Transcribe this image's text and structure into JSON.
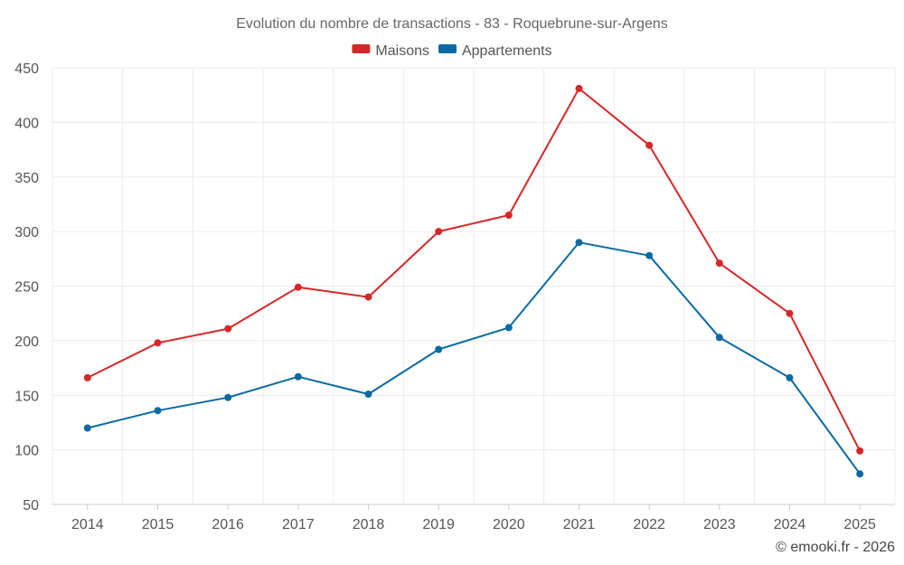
{
  "chart_data": {
    "type": "line",
    "title": "Evolution du nombre de transactions - 83 - Roquebrune-sur-Argens",
    "xlabel": "",
    "ylabel": "",
    "categories": [
      "2014",
      "2015",
      "2016",
      "2017",
      "2018",
      "2019",
      "2020",
      "2021",
      "2022",
      "2023",
      "2024",
      "2025"
    ],
    "ylim": [
      50,
      450
    ],
    "yticks": [
      50,
      100,
      150,
      200,
      250,
      300,
      350,
      400,
      450
    ],
    "grid": true,
    "legend_position": "top-center",
    "series": [
      {
        "name": "Maisons",
        "color": "#d62728",
        "values": [
          166,
          198,
          211,
          249,
          240,
          300,
          315,
          431,
          379,
          271,
          225,
          99
        ]
      },
      {
        "name": "Appartements",
        "color": "#0b6aa2",
        "values": [
          120,
          136,
          148,
          167,
          151,
          192,
          212,
          290,
          278,
          203,
          166,
          78
        ]
      }
    ]
  },
  "credit": "© emooki.fr - 2026"
}
